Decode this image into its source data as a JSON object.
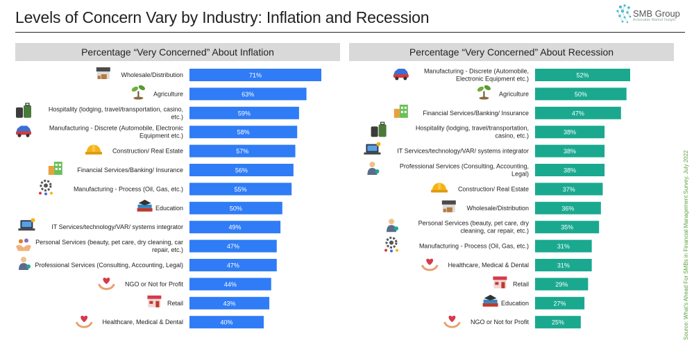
{
  "page": {
    "title": "Levels of Concern Vary by Industry: Inflation and Recession",
    "source": "Source: What's Ahead For SMBs in Financial Management Survey, July 2022",
    "logo_text": "SMB Group",
    "logo_subtext": "Actionable Market Insight"
  },
  "chart_data": [
    {
      "type": "bar",
      "orientation": "horizontal",
      "title": "Percentage “Very Concerned” About Inflation",
      "color": "#2f7cf6",
      "xlim": [
        0,
        71
      ],
      "categories": [
        "Wholesale/Distribution",
        "Agriculture",
        "Hospitality (lodging, travel/transportation, casino, etc.)",
        "Manufacturing - Discrete (Automobile, Electronic Equipment etc.)",
        "Construction/ Real Estate",
        "Financial Services/Banking/ Insurance",
        "Manufacturing - Process (Oil, Gas, etc.)",
        "Education",
        "IT Services/technology/VAR/ systems integrator",
        "Personal Services (beauty, pet care, dry cleaning, car repair, etc.)",
        "Professional Services (Consulting, Accounting, Legal)",
        "NGO or Not for Profit",
        "Retail",
        "Healthcare, Medical & Dental"
      ],
      "category_lines": [
        [
          "Wholesale/Distribution"
        ],
        [
          "Agriculture"
        ],
        [
          "Hospitality (lodging, travel/transportation, casino,",
          "etc.)"
        ],
        [
          "Manufacturing - Discrete (Automobile, Electronic",
          "Equipment etc.)"
        ],
        [
          "Construction/ Real Estate"
        ],
        [
          "Financial Services/Banking/ Insurance"
        ],
        [
          "Manufacturing - Process (Oil, Gas, etc.)"
        ],
        [
          "Education"
        ],
        [
          "IT Services/technology/VAR/ systems integrator"
        ],
        [
          "Personal Services (beauty, pet care, dry cleaning, car",
          "repair, etc.)"
        ],
        [
          "Professional Services (Consulting, Accounting, Legal)"
        ],
        [
          "NGO or Not for Profit"
        ],
        [
          "Retail"
        ],
        [
          "Healthcare, Medical & Dental"
        ]
      ],
      "icons": [
        "warehouse-icon",
        "plant-icon",
        "luggage-icon",
        "car-icon",
        "hardhat-icon",
        "buildings-icon",
        "gear-icon",
        "books-icon",
        "laptop-icon",
        "hands-icon",
        "person-icon",
        "heart-hand-icon",
        "store-icon",
        "heart-hand-icon"
      ],
      "values": [
        71,
        63,
        59,
        58,
        57,
        56,
        55,
        50,
        49,
        47,
        47,
        44,
        43,
        40
      ],
      "labels": [
        "71%",
        "63%",
        "59%",
        "58%",
        "57%",
        "56%",
        "55%",
        "50%",
        "49%",
        "47%",
        "47%",
        "44%",
        "43%",
        "40%"
      ]
    },
    {
      "type": "bar",
      "orientation": "horizontal",
      "title": "Percentage “Very Concerned” About Recession",
      "color": "#1aa98f",
      "xlim": [
        0,
        52
      ],
      "categories": [
        "Manufacturing - Discrete (Automobile, Electronic Equipment etc.)",
        "Agriculture",
        "Financial Services/Banking/ Insurance",
        "Hospitality (lodging, travel/transportation, casino, etc.)",
        "IT Services/technology/VAR/ systems integrator",
        "Professional Services (Consulting, Accounting, Legal)",
        "Construction/ Real Estate",
        "Wholesale/Distribution",
        "Personal Services (beauty, pet care, dry cleaning, car repair, etc.)",
        "Manufacturing - Process (Oil, Gas, etc.)",
        "Healthcare, Medical & Dental",
        "Retail",
        "Education",
        "NGO or Not for Profit"
      ],
      "category_lines": [
        [
          "Manufacturing - Discrete (Automobile,",
          "Electronic Equipment etc.)"
        ],
        [
          "Agriculture"
        ],
        [
          "Financial Services/Banking/ Insurance"
        ],
        [
          "Hospitality (lodging, travel/transportation,",
          "casino, etc.)"
        ],
        [
          "IT Services/technology/VAR/ systems integrator"
        ],
        [
          "Professional Services (Consulting, Accounting,",
          "Legal)"
        ],
        [
          "Construction/ Real Estate"
        ],
        [
          "Wholesale/Distribution"
        ],
        [
          "Personal Services (beauty, pet care, dry",
          "cleaning, car repair, etc.)"
        ],
        [
          "Manufacturing - Process (Oil, Gas, etc.)"
        ],
        [
          "Healthcare, Medical & Dental"
        ],
        [
          "Retail"
        ],
        [
          "Education"
        ],
        [
          "NGO or Not for Profit"
        ]
      ],
      "icons": [
        "car-icon",
        "plant-icon",
        "buildings-icon",
        "luggage-icon",
        "laptop-icon",
        "person-icon",
        "hardhat-icon",
        "warehouse-icon",
        "person-icon",
        "gear-icon",
        "heart-hand-icon",
        "store-icon",
        "books-icon",
        "heart-hand-icon"
      ],
      "values": [
        52,
        50,
        47,
        38,
        38,
        38,
        37,
        36,
        35,
        31,
        31,
        29,
        27,
        25
      ],
      "labels": [
        "52%",
        "50%",
        "47%",
        "38%",
        "38%",
        "38%",
        "37%",
        "36%",
        "35%",
        "31%",
        "31%",
        "29%",
        "27%",
        "25%"
      ]
    }
  ]
}
